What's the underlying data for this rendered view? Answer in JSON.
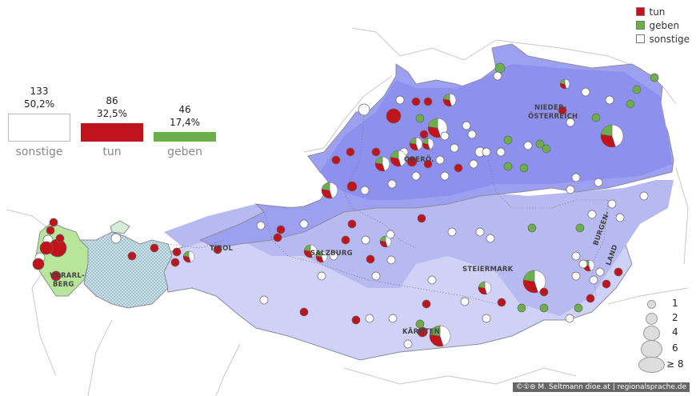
{
  "legend": [
    {
      "label": "tun",
      "color": "#c0141c"
    },
    {
      "label": "geben",
      "color": "#6aaf4a"
    },
    {
      "label": "sonstige",
      "color": "#ffffff"
    }
  ],
  "bars": [
    {
      "label": "sonstige",
      "count": "133",
      "pct": "50,2%",
      "value": 50.2,
      "color": "#ffffff"
    },
    {
      "label": "tun",
      "count": "86",
      "pct": "32,5%",
      "value": 32.5,
      "color": "#c0141c"
    },
    {
      "label": "geben",
      "count": "46",
      "pct": "17,4%",
      "value": 17.4,
      "color": "#6aaf4a"
    }
  ],
  "regions": [
    {
      "name": "NIEDER-",
      "key": "n1"
    },
    {
      "name": "ÖSTERREICH",
      "key": "n2"
    },
    {
      "name": "OBERÖ.",
      "key": "o1"
    },
    {
      "name": "TIROL",
      "key": "t1"
    },
    {
      "name": "SALZBURG",
      "key": "s1"
    },
    {
      "name": "STEIERMARK",
      "key": "st"
    },
    {
      "name": "KÄRNTEN",
      "key": "k1"
    },
    {
      "name": "VORARL-",
      "key": "v1"
    },
    {
      "name": "BERG",
      "key": "v2"
    },
    {
      "name": "BURGEN-",
      "key": "b1"
    },
    {
      "name": "LAND",
      "key": "b2"
    }
  ],
  "size_legend": [
    "1",
    "2",
    "4",
    "6",
    "≥ 8"
  ],
  "credit": "©①⊜ M. Seltmann   dioe.at | regionalsprache.de"
}
